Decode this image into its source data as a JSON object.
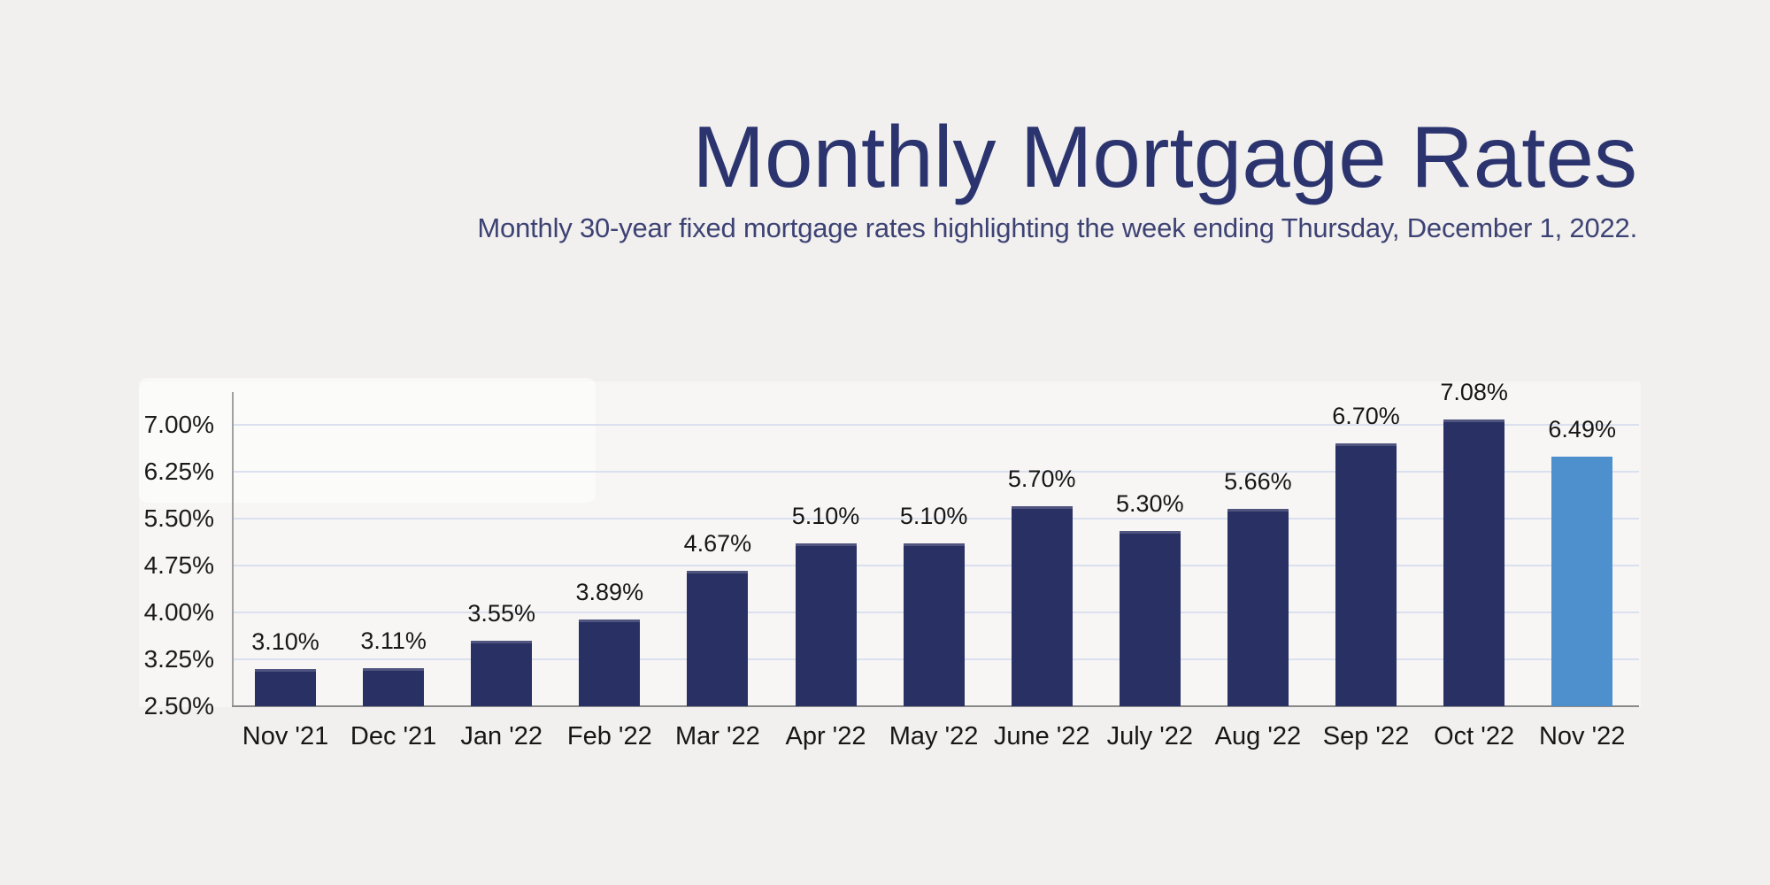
{
  "chart_data": {
    "type": "bar",
    "title": "Monthly Mortgage Rates",
    "subtitle": "Monthly 30-year fixed mortgage rates highlighting the week ending Thursday, December 1, 2022.",
    "categories": [
      "Nov '21",
      "Dec '21",
      "Jan '22",
      "Feb '22",
      "Mar '22",
      "Apr '22",
      "May '22",
      "June '22",
      "July '22",
      "Aug '22",
      "Sep '22",
      "Oct '22",
      "Nov '22"
    ],
    "values": [
      3.1,
      3.11,
      3.55,
      3.89,
      4.67,
      5.1,
      5.1,
      5.7,
      5.3,
      5.66,
      6.7,
      7.08,
      6.49
    ],
    "value_labels": [
      "3.10%",
      "3.11%",
      "3.55%",
      "3.89%",
      "4.67%",
      "5.10%",
      "5.10%",
      "5.70%",
      "5.30%",
      "5.66%",
      "6.70%",
      "7.08%",
      "6.49%"
    ],
    "unit": "%",
    "ytick_labels": [
      "7.00%",
      "6.25%",
      "5.50%",
      "4.75%",
      "4.00%",
      "3.25%",
      "2.50%"
    ],
    "ytick_values": [
      7.0,
      6.25,
      5.5,
      4.75,
      4.0,
      3.25,
      2.5
    ],
    "ylim": [
      2.5,
      7.52
    ],
    "xlabel": "",
    "ylabel": "",
    "grid": "horizontal",
    "legend": "none",
    "highlight_category": "Nov '22",
    "highlight_index": 12,
    "colors": {
      "bar": "#293063",
      "highlight_bar": "#4e90cd",
      "gridline": "#dbe0ef",
      "x_axis_line": "#8a8a8a",
      "y_axis_line": "#a0a0a0",
      "tick_text": "#1b1b1b",
      "title_text": "#2b346e",
      "subtitle_text": "#3d4274",
      "page_background": "#f1f0ee"
    }
  }
}
